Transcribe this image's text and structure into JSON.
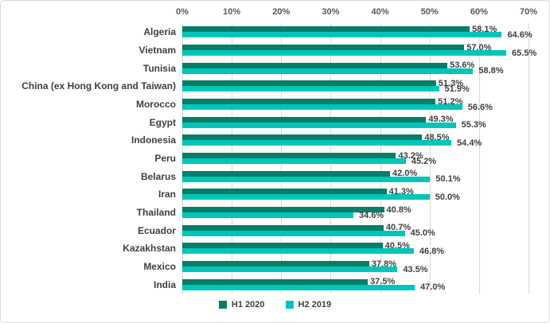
{
  "chart_data": {
    "type": "bar",
    "orientation": "horizontal",
    "title": "",
    "categories": [
      "Algeria",
      "Vietnam",
      "Tunisia",
      "China (ex Hong Kong and Taiwan)",
      "Morocco",
      "Egypt",
      "Indonesia",
      "Peru",
      "Belarus",
      "Iran",
      "Thailand",
      "Ecuador",
      "Kazakhstan",
      "Mexico",
      "India"
    ],
    "series": [
      {
        "name": "H1 2020",
        "color": "#077e6a",
        "values": [
          58.1,
          57.0,
          53.6,
          51.3,
          51.2,
          49.3,
          48.5,
          43.2,
          42.0,
          41.3,
          40.8,
          40.7,
          40.5,
          37.8,
          37.5
        ],
        "labels": [
          "58.1%",
          "57.0%",
          "53.6%",
          "51.3%",
          "51.2%",
          "49.3%",
          "48.5%",
          "43.2%",
          "42.0%",
          "41.3%",
          "40.8%",
          "40.7%",
          "40.5%",
          "37.8%",
          "37.5%"
        ]
      },
      {
        "name": "H2 2019",
        "color": "#00c5b9",
        "values": [
          64.6,
          65.5,
          58.8,
          51.9,
          56.6,
          55.3,
          54.4,
          45.2,
          50.1,
          50.0,
          34.6,
          45.0,
          46.8,
          43.5,
          47.0
        ],
        "labels": [
          "64.6%",
          "65.5%",
          "58.8%",
          "51.9%",
          "56.6%",
          "55.3%",
          "54.4%",
          "45.2%",
          "50.1%",
          "50.0%",
          "34.6%",
          "45.0%",
          "46.8%",
          "43.5%",
          "47.0%"
        ]
      }
    ],
    "value_axis": {
      "position": "top",
      "min": 0,
      "max": 70,
      "tick_step": 10,
      "tick_labels": [
        "0%",
        "10%",
        "20%",
        "30%",
        "40%",
        "50%",
        "60%",
        "70%"
      ]
    },
    "legend_position": "bottom",
    "gridlines": true,
    "colors": {
      "gridline": "#d9d9d9",
      "axis_text": "#595959",
      "label_text": "#404040",
      "background": "#ffffff",
      "border": "#d9d9d9"
    }
  }
}
